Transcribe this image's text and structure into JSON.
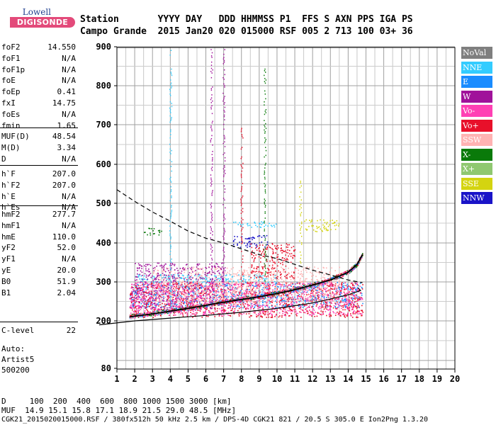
{
  "logo": {
    "company": "Lowell",
    "product": "DIGISONDE"
  },
  "header": {
    "labels_line": "Station       YYYY DAY   DDD HHMMSS P1  FFS S AXN PPS IGA PS",
    "values_line": "Campo Grande  2015 Jan20 020 015000 RSF 005 2 713 100 03+ 36"
  },
  "params": {
    "group1": [
      {
        "label": "foF2",
        "value": "14.550"
      },
      {
        "label": "foF1",
        "value": "N/A"
      },
      {
        "label": "foF1p",
        "value": "N/A"
      },
      {
        "label": "foE",
        "value": "N/A"
      },
      {
        "label": "foEp",
        "value": "0.41"
      },
      {
        "label": "fxI",
        "value": "14.75"
      },
      {
        "label": "foEs",
        "value": "N/A"
      },
      {
        "label": "fmin",
        "value": "1.65"
      }
    ],
    "group2": [
      {
        "label": "MUF(D)",
        "value": "48.54"
      },
      {
        "label": "M(D)",
        "value": "3.34"
      },
      {
        "label": "D",
        "value": "N/A"
      }
    ],
    "group3": [
      {
        "label": "h`F",
        "value": "207.0"
      },
      {
        "label": "h`F2",
        "value": "207.0"
      },
      {
        "label": "h`E",
        "value": "N/A"
      },
      {
        "label": "h`Es",
        "value": "N/A"
      }
    ],
    "group4": [
      {
        "label": "hmF2",
        "value": "277.7"
      },
      {
        "label": "hmF1",
        "value": "N/A"
      },
      {
        "label": "hmE",
        "value": "110.0"
      },
      {
        "label": "yF2",
        "value": "52.0"
      },
      {
        "label": "yF1",
        "value": "N/A"
      },
      {
        "label": "yE",
        "value": "20.0"
      },
      {
        "label": "B0",
        "value": "51.9"
      },
      {
        "label": "B1",
        "value": "2.04"
      }
    ],
    "group5": [
      {
        "label": "C-level",
        "value": "22"
      }
    ]
  },
  "auto": {
    "line1": "Auto:",
    "line2": "Artist5",
    "line3": "500200"
  },
  "legend": [
    {
      "label": "NoVal",
      "color": "#7f7f7f"
    },
    {
      "label": "NNE",
      "color": "#33ccff"
    },
    {
      "label": "E",
      "color": "#1a8cff"
    },
    {
      "label": "W",
      "color": "#a0129a"
    },
    {
      "label": "Vo-",
      "color": "#ff40b4"
    },
    {
      "label": "Vo+",
      "color": "#e8102a"
    },
    {
      "label": "SSW",
      "color": "#ffb3b3"
    },
    {
      "label": "X-",
      "color": "#0a7a0a"
    },
    {
      "label": "X+",
      "color": "#8fc870"
    },
    {
      "label": "SSE",
      "color": "#d4d410"
    },
    {
      "label": "NNW",
      "color": "#1a14c8"
    }
  ],
  "bottom": {
    "line1": "D     100  200  400  600  800 1000 1500 3000 [km]",
    "line2": "MUF  14.9 15.1 15.8 17.1 18.9 21.5 29.0 48.5 [MHz]",
    "line3": "CGK21_2015020015000.RSF / 380fx512h 50 kHz 2.5 km / DPS-4D CGK21 821 / 20.5 S 305.0 E Ion2Png 1.3.20"
  },
  "chart_data": {
    "type": "scatter",
    "x_ticks": [
      "1",
      "2",
      "3",
      "4",
      "5",
      "6",
      "7",
      "8",
      "9",
      "10",
      "11",
      "12",
      "13",
      "14",
      "15",
      "16",
      "17",
      "18",
      "19",
      "20"
    ],
    "y_ticks": [
      "80",
      "200",
      "300",
      "400",
      "500",
      "600",
      "700",
      "800",
      "900"
    ],
    "xlim": [
      1,
      20
    ],
    "y_scale": "mixed-log",
    "grid": true,
    "echo_bands": [
      {
        "name": "E",
        "x": [
          1.7,
          14.8
        ],
        "y": [
          235,
          300
        ],
        "color": "#1a8cff"
      },
      {
        "name": "W",
        "x": [
          1.7,
          6.5
        ],
        "y": [
          228,
          295
        ],
        "color": "#a0129a"
      },
      {
        "name": "Vo+",
        "x": [
          1.7,
          14.8
        ],
        "y": [
          210,
          300
        ],
        "color": "#e8102a"
      },
      {
        "name": "Vo-",
        "x": [
          1.7,
          14.8
        ],
        "y": [
          215,
          300
        ],
        "color": "#ff40b4"
      },
      {
        "name": "SSW",
        "x": [
          3.0,
          13.5
        ],
        "y": [
          250,
          340
        ],
        "color": "#ffb3b3"
      },
      {
        "name": "NNE",
        "x": [
          2.0,
          10.0
        ],
        "y": [
          300,
          320
        ],
        "color": "#33ccff"
      },
      {
        "name": "W",
        "x": [
          2.0,
          7.0
        ],
        "y": [
          300,
          350
        ],
        "color": "#a0129a"
      },
      {
        "name": "NNW",
        "x": [
          7.5,
          9.5
        ],
        "y": [
          390,
          420
        ],
        "color": "#1a14c8"
      },
      {
        "name": "Vo+",
        "x": [
          8.5,
          11.0
        ],
        "y": [
          310,
          400
        ],
        "color": "#e8102a"
      },
      {
        "name": "SSE",
        "x": [
          11.5,
          13.5
        ],
        "y": [
          430,
          460
        ],
        "color": "#d4d410"
      },
      {
        "name": "NNE",
        "x": [
          7.5,
          10.0
        ],
        "y": [
          440,
          455
        ],
        "color": "#33ccff"
      },
      {
        "name": "X-",
        "x": [
          2.5,
          3.5
        ],
        "y": [
          420,
          440
        ],
        "color": "#0a7a0a"
      }
    ],
    "trace_x": [
      1.7,
      2.0,
      3.0,
      4.0,
      5.0,
      6.0,
      7.0,
      8.0,
      9.0,
      10.0,
      11.0,
      12.0,
      13.0,
      14.0,
      14.5,
      14.8
    ],
    "trace_y": [
      210,
      212,
      218,
      225,
      232,
      240,
      248,
      255,
      262,
      270,
      280,
      292,
      305,
      325,
      345,
      370
    ],
    "profile_x": [
      0,
      2,
      4,
      6,
      8,
      10,
      12,
      13,
      14,
      14.5,
      14.7,
      14.55
    ],
    "profile_y": [
      190,
      200,
      207,
      214,
      222,
      232,
      246,
      256,
      267,
      275,
      278,
      285
    ],
    "muf_x": [
      1.0,
      2.0,
      3.0,
      4.0,
      5.0,
      6.0,
      7.0,
      8.0,
      9.0,
      10.0,
      11.0,
      12.0,
      13.0,
      14.0,
      14.8
    ],
    "muf_y": [
      535,
      505,
      478,
      455,
      430,
      412,
      400,
      385,
      370,
      360,
      345,
      330,
      318,
      305,
      298
    ],
    "vertical_streaks": [
      {
        "x": 4.0,
        "y": [
          240,
          900
        ],
        "color": "#33ccff"
      },
      {
        "x": 6.3,
        "y": [
          250,
          900
        ],
        "color": "#a0129a"
      },
      {
        "x": 7.0,
        "y": [
          250,
          900
        ],
        "color": "#a0129a"
      },
      {
        "x": 8.0,
        "y": [
          280,
          700
        ],
        "color": "#e8102a"
      },
      {
        "x": 9.3,
        "y": [
          300,
          850
        ],
        "color": "#0a7a0a"
      },
      {
        "x": 11.3,
        "y": [
          350,
          560
        ],
        "color": "#d4d410"
      }
    ]
  }
}
